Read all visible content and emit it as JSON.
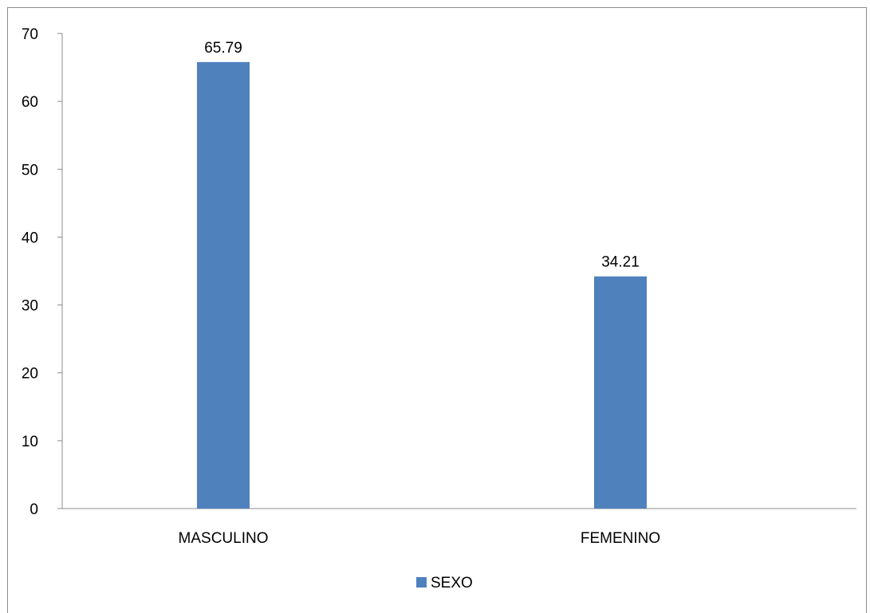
{
  "chart_data": {
    "type": "bar",
    "title": "",
    "xlabel": "",
    "ylabel": "",
    "categories": [
      "MASCULINO",
      "FEMENINO"
    ],
    "series": [
      {
        "name": "SEXO",
        "values": [
          65.79,
          34.21
        ],
        "color": "#4f81bd"
      }
    ],
    "data_labels": [
      "65.79",
      "34.21"
    ],
    "ylim": [
      0,
      70
    ],
    "yticks": [
      0,
      10,
      20,
      30,
      40,
      50,
      60,
      70
    ],
    "ytick_labels": [
      "0",
      "10",
      "20",
      "30",
      "40",
      "50",
      "60",
      "70"
    ],
    "grid": false,
    "legend": {
      "position": "bottom",
      "entries": [
        "SEXO"
      ]
    }
  },
  "colors": {
    "axis": "#8c8c8c",
    "bar": "#4f81bd",
    "frame": "#8c8c8c"
  }
}
